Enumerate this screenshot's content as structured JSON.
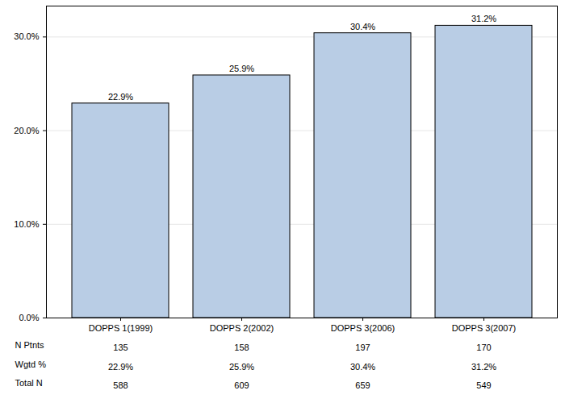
{
  "chart_data": {
    "type": "bar",
    "categories": [
      "DOPPS 1(1999)",
      "DOPPS 2(2002)",
      "DOPPS 3(2006)",
      "DOPPS 3(2007)"
    ],
    "values": [
      22.9,
      25.9,
      30.4,
      31.2
    ],
    "value_labels": [
      "22.9%",
      "25.9%",
      "30.4%",
      "31.2%"
    ],
    "data_labels": true,
    "color": "#b9cde5",
    "ylim": [
      0,
      33.3
    ],
    "yticks": [
      {
        "value": 0,
        "label": "0.0%"
      },
      {
        "value": 10,
        "label": "10.0%"
      },
      {
        "value": 20,
        "label": "20.0%"
      },
      {
        "value": 30,
        "label": "30.0%"
      }
    ],
    "grid": true,
    "table": {
      "rows": [
        {
          "label": "N Ptnts",
          "values": [
            135,
            158,
            197,
            170
          ]
        },
        {
          "label": "Wgtd %",
          "values": [
            22.9,
            25.9,
            30.4,
            31.2
          ],
          "value_labels": [
            "22.9%",
            "25.9%",
            "30.4%",
            "31.2%"
          ]
        },
        {
          "label": "Total N",
          "values": [
            588,
            609,
            659,
            549
          ]
        }
      ]
    }
  }
}
